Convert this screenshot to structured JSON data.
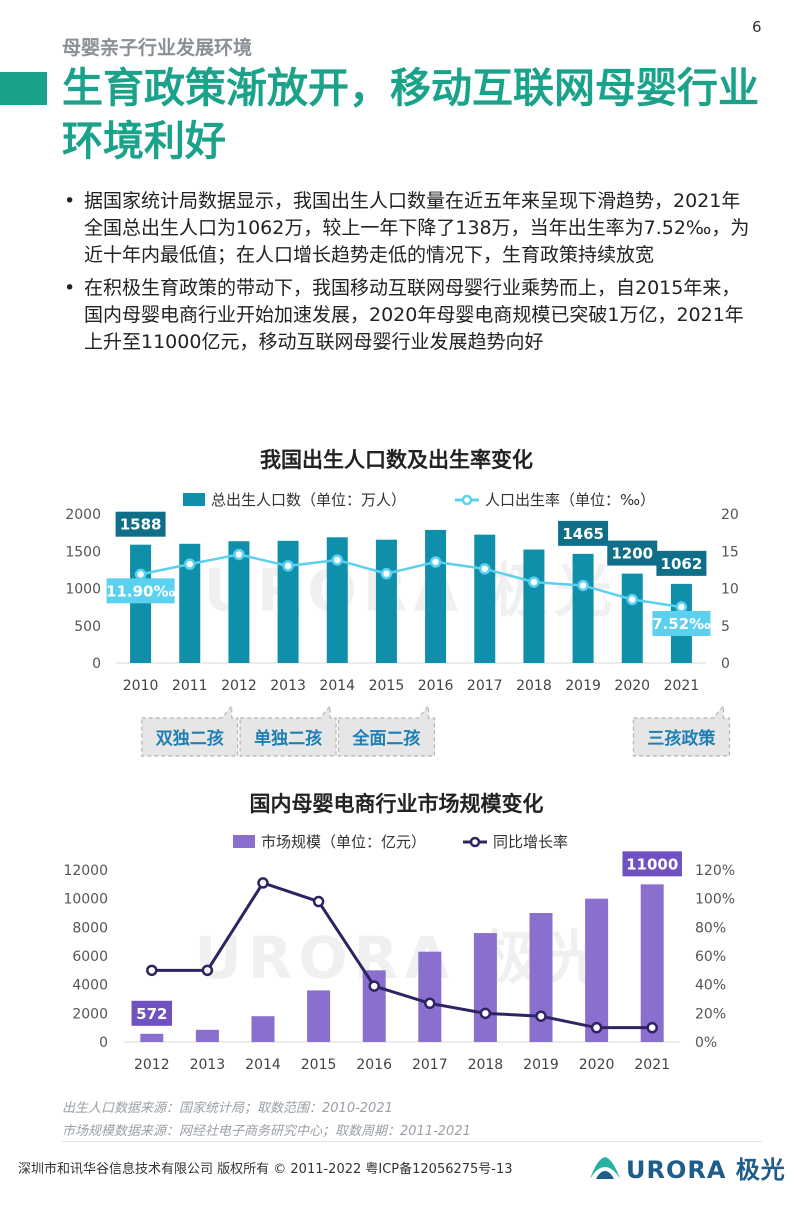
{
  "page_number": "6",
  "section_title": "母婴亲子行业发展环境",
  "headline": "生育政策渐放开，移动互联网母婴行业环境利好",
  "bullets": [
    "据国家统计局数据显示，我国出生人口数量在近五年来呈现下滑趋势，2021年全国总出生人口为1062万，较上一年下降了138万，当年出生率为7.52‰，为近十年内最低值；在人口增长趋势走低的情况下，生育政策持续放宽",
    "在积极生育政策的带动下，我国移动互联网母婴行业乘势而上，自2015年来，国内母婴电商行业开始加速发展，2020年母婴电商规模已突破1万亿，2021年上升至11000亿元，移动互联网母婴行业发展趋势向好"
  ],
  "watermark": "URORA 极光",
  "chart_data": [
    {
      "type": "bar",
      "title": "我国出生人口数及出生率变化",
      "categories": [
        "2010",
        "2011",
        "2012",
        "2013",
        "2014",
        "2015",
        "2016",
        "2017",
        "2018",
        "2019",
        "2020",
        "2021"
      ],
      "series": [
        {
          "name": "总出生人口数（单位：万人）",
          "axis": "left",
          "values": [
            1588,
            1600,
            1635,
            1640,
            1687,
            1655,
            1786,
            1723,
            1523,
            1465,
            1200,
            1062
          ],
          "color": "#0f8fa9"
        },
        {
          "name": "人口出生率（单位：‰）",
          "axis": "right",
          "type": "line",
          "values": [
            11.9,
            13.27,
            14.57,
            13.03,
            13.83,
            11.99,
            13.57,
            12.64,
            10.86,
            10.41,
            8.52,
            7.52
          ],
          "color": "#5bd0ef"
        }
      ],
      "y_left": {
        "ticks": [
          "0",
          "500",
          "1000",
          "1500",
          "2000"
        ],
        "ylim": [
          0,
          2000
        ]
      },
      "y_right": {
        "ticks": [
          "0",
          "5",
          "10",
          "15",
          "20"
        ],
        "ylim": [
          0,
          20
        ]
      },
      "bar_labels": [
        {
          "index": 0,
          "text": "1588"
        },
        {
          "index": 9,
          "text": "1465"
        },
        {
          "index": 10,
          "text": "1200"
        },
        {
          "index": 11,
          "text": "1062"
        }
      ],
      "line_labels": [
        {
          "index": 0,
          "text": "11.90‰"
        },
        {
          "index": 11,
          "text": "7.52‰"
        }
      ],
      "policy_callouts": [
        {
          "index": 1,
          "text": "双独二孩"
        },
        {
          "index": 3,
          "text": "单独二孩"
        },
        {
          "index": 5,
          "text": "全面二孩"
        },
        {
          "index": 11,
          "text": "三孩政策"
        }
      ],
      "legend_position": "top"
    },
    {
      "type": "bar",
      "title": "国内母婴电商行业市场规模变化",
      "categories": [
        "2012",
        "2013",
        "2014",
        "2015",
        "2016",
        "2017",
        "2018",
        "2019",
        "2020",
        "2021"
      ],
      "series": [
        {
          "name": "市场规模（单位：亿元）",
          "axis": "left",
          "values": [
            572,
            850,
            1800,
            3600,
            5000,
            6300,
            7600,
            9000,
            10000,
            11000
          ],
          "color": "#8a6fce"
        },
        {
          "name": "同比增长率",
          "axis": "right",
          "type": "line",
          "values": [
            50,
            50,
            111,
            98,
            39,
            27,
            20,
            18,
            10,
            10
          ],
          "color": "#2e2463"
        }
      ],
      "y_left": {
        "ticks": [
          "0",
          "2000",
          "4000",
          "6000",
          "8000",
          "10000",
          "12000"
        ],
        "ylim": [
          0,
          12000
        ]
      },
      "y_right": {
        "ticks": [
          "0%",
          "20%",
          "40%",
          "60%",
          "80%",
          "100%",
          "120%"
        ],
        "ylim": [
          0,
          120
        ]
      },
      "bar_labels": [
        {
          "index": 0,
          "text": "572"
        },
        {
          "index": 9,
          "text": "11000"
        }
      ],
      "legend_position": "top"
    }
  ],
  "sources": [
    "出生人口数据来源：国家统计局；取数范围：2010-2021",
    "市场规模数据来源：网经社电子商务研究中心；取数周期：2011-2021"
  ],
  "footer": "深圳市和讯华谷信息技术有限公司 版权所有 © 2011-2022 粤ICP备12056275号-13",
  "logo_text": "URORA 极光",
  "colors": {
    "brand_green": "#1aa38a",
    "bar_teal": "#0f8fa9",
    "line_cyan": "#5bd0ef",
    "bar_purple": "#8a6fce",
    "line_navy": "#2e2463"
  }
}
